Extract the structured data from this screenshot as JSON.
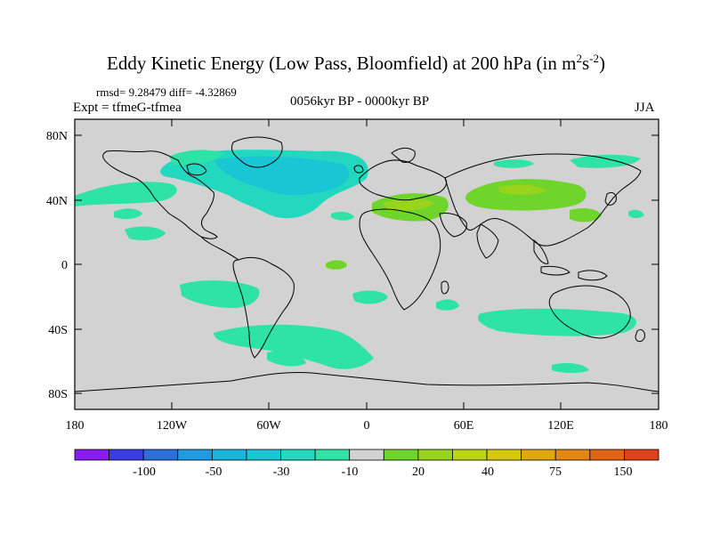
{
  "header": {
    "title_main": "Eddy Kinetic Energy (Low Pass, Bloomfield) at 200 hPa (in m",
    "title_sup1": "2",
    "title_s": "s",
    "title_sup2": "-2",
    "title_close": ")",
    "stats": "rmsd= 9.28479 diff= -4.32869",
    "expt": "Expt = tfmeG-tfmea",
    "period": "0056kyr BP - 0000kyr BP",
    "season": "JJA"
  },
  "axes": {
    "y_ticks": [
      "80N",
      "40N",
      "0",
      "40S",
      "80S"
    ],
    "x_ticks": [
      "180",
      "120W",
      "60W",
      "0",
      "60E",
      "120E",
      "180"
    ]
  },
  "colorbar": {
    "colors": [
      "#8a1cf0",
      "#3c3ce6",
      "#2a6fe0",
      "#1f9be2",
      "#18b5dc",
      "#19c7d4",
      "#22d9c0",
      "#2fe3a6",
      "#d2d2d2",
      "#6fd52a",
      "#99d41c",
      "#bcd610",
      "#d6c80c",
      "#e0a80e",
      "#e48612",
      "#e46416",
      "#e0401a"
    ],
    "labels": [
      "-100",
      "-50",
      "-30",
      "-10",
      "20",
      "40",
      "75",
      "150"
    ]
  },
  "map": {
    "background_color": "#d2d2d2",
    "colors": {
      "cyan": "#2fe3a6",
      "blue_light": "#22d9c0",
      "blue": "#19c7d4",
      "green": "#6fd52a",
      "green_dark": "#99d41c"
    }
  }
}
